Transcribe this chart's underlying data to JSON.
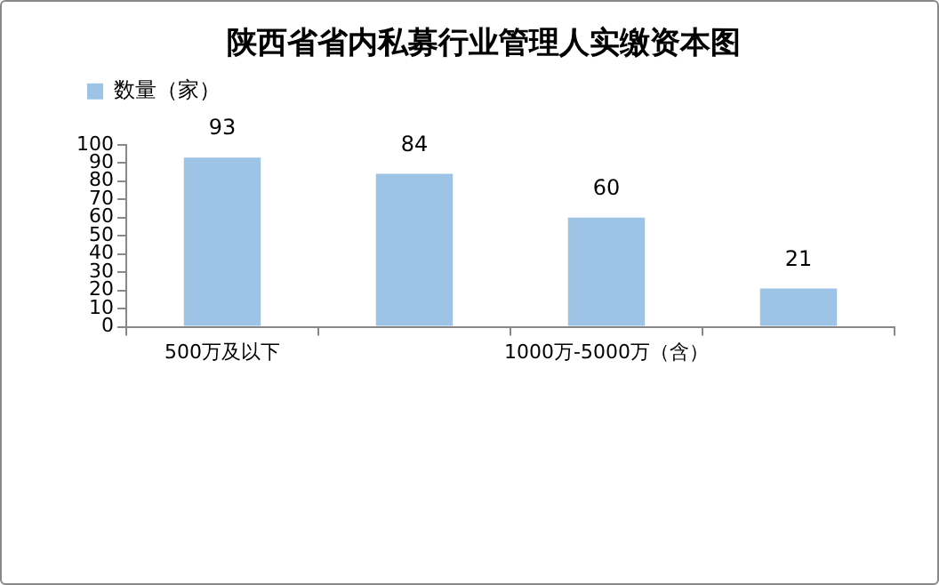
{
  "chart_data": {
    "type": "bar",
    "title": "陕西省省内私募行业管理人实缴资本图",
    "categories": [
      "500万及以下",
      null,
      "1000万-5000万（含）",
      null
    ],
    "series": [
      {
        "name": "数量（家）",
        "color": "#9dc3e6",
        "values": [
          93,
          84,
          60,
          21
        ]
      }
    ],
    "ylim": [
      0,
      100
    ],
    "yticks": [
      0,
      10,
      20,
      30,
      40,
      50,
      60,
      70,
      80,
      90,
      100
    ],
    "grid": false,
    "legend": "top left",
    "data_labels": true
  }
}
